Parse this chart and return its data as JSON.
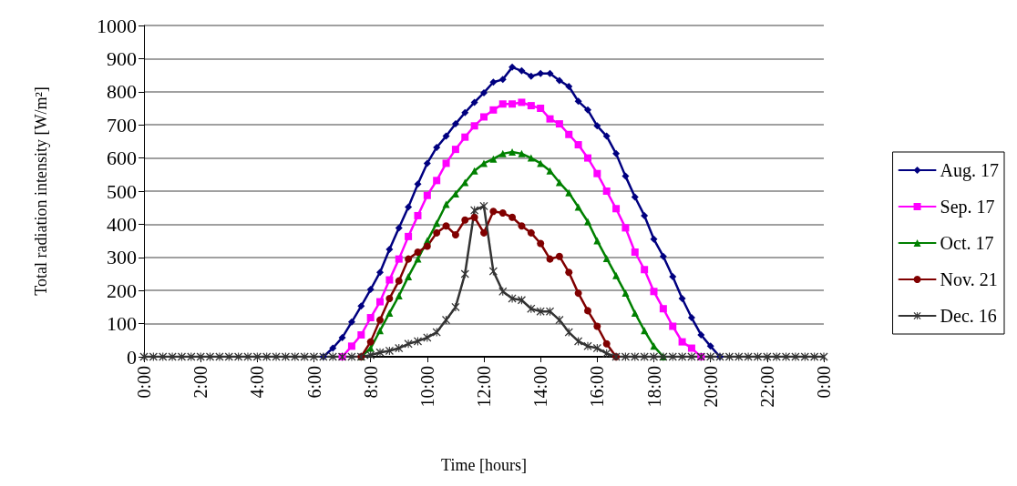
{
  "chart_data": {
    "type": "line",
    "xlabel": "Time [hours]",
    "ylabel": "Total radiation intensity [W/m²]",
    "x": [
      0,
      0.333,
      0.667,
      1,
      1.333,
      1.667,
      2,
      2.333,
      2.667,
      3,
      3.333,
      3.667,
      4,
      4.333,
      4.667,
      5,
      5.333,
      5.667,
      6,
      6.333,
      6.667,
      7,
      7.333,
      7.667,
      8,
      8.333,
      8.667,
      9,
      9.333,
      9.667,
      10,
      10.333,
      10.667,
      11,
      11.333,
      11.667,
      12,
      12.333,
      12.667,
      13,
      13.333,
      13.667,
      14,
      14.333,
      14.667,
      15,
      15.333,
      15.667,
      16,
      16.333,
      16.667,
      17,
      17.333,
      17.667,
      18,
      18.333,
      18.667,
      19,
      19.333,
      19.667,
      20,
      20.333,
      20.667,
      21,
      21.333,
      21.667,
      22,
      22.333,
      22.667,
      23,
      23.333,
      23.667,
      24
    ],
    "series": [
      {
        "name": "Aug. 17",
        "color": "#000080",
        "marker": "diamond",
        "values": [
          null,
          null,
          null,
          null,
          null,
          null,
          null,
          null,
          null,
          null,
          null,
          null,
          null,
          null,
          null,
          null,
          null,
          null,
          null,
          0,
          26,
          58,
          105,
          153,
          203,
          255,
          324,
          389,
          452,
          521,
          584,
          632,
          666,
          703,
          737,
          768,
          797,
          829,
          837,
          874,
          863,
          847,
          855,
          855,
          834,
          816,
          771,
          745,
          697,
          666,
          613,
          545,
          482,
          426,
          355,
          303,
          242,
          176,
          118,
          66,
          32,
          0,
          null,
          null,
          null,
          null,
          null,
          null,
          null,
          null,
          null,
          null,
          null
        ]
      },
      {
        "name": "Sep. 17",
        "color": "#ff00ff",
        "marker": "square",
        "values": [
          null,
          null,
          null,
          null,
          null,
          null,
          null,
          null,
          null,
          null,
          null,
          null,
          null,
          null,
          null,
          null,
          null,
          null,
          null,
          null,
          null,
          0,
          32,
          66,
          118,
          166,
          232,
          295,
          363,
          426,
          487,
          532,
          584,
          626,
          663,
          697,
          724,
          745,
          763,
          763,
          768,
          758,
          750,
          718,
          703,
          671,
          640,
          600,
          553,
          500,
          447,
          389,
          316,
          263,
          197,
          145,
          92,
          45,
          26,
          0,
          null,
          null,
          null,
          null,
          null,
          null,
          null,
          null,
          null,
          null,
          null,
          null,
          null
        ]
      },
      {
        "name": "Oct. 17",
        "color": "#008000",
        "marker": "triangle",
        "values": [
          null,
          null,
          null,
          null,
          null,
          null,
          null,
          null,
          null,
          null,
          null,
          null,
          null,
          null,
          null,
          null,
          null,
          null,
          null,
          null,
          null,
          null,
          null,
          0,
          26,
          79,
          132,
          184,
          242,
          295,
          350,
          403,
          460,
          492,
          526,
          561,
          584,
          597,
          613,
          618,
          613,
          600,
          584,
          561,
          526,
          495,
          452,
          408,
          350,
          297,
          245,
          192,
          132,
          79,
          32,
          0,
          null,
          null,
          null,
          null,
          null,
          null,
          null,
          null,
          null,
          null,
          null,
          null,
          null,
          null,
          null,
          null,
          null
        ]
      },
      {
        "name": "Nov. 21",
        "color": "#800000",
        "marker": "circle",
        "values": [
          null,
          null,
          null,
          null,
          null,
          null,
          null,
          null,
          null,
          null,
          null,
          null,
          null,
          null,
          null,
          null,
          null,
          null,
          null,
          null,
          null,
          null,
          null,
          0,
          45,
          111,
          176,
          229,
          295,
          316,
          334,
          374,
          395,
          368,
          413,
          421,
          374,
          439,
          434,
          421,
          395,
          374,
          342,
          295,
          303,
          255,
          192,
          139,
          92,
          39,
          0,
          null,
          null,
          null,
          null,
          null,
          null,
          null,
          null,
          null,
          null,
          null,
          null,
          null,
          null,
          null,
          null,
          null,
          null,
          null,
          null,
          null,
          null
        ]
      },
      {
        "name": "Dec. 16",
        "color": "#333333",
        "marker": "cross",
        "values": [
          0,
          0,
          0,
          0,
          0,
          0,
          0,
          0,
          0,
          0,
          0,
          0,
          0,
          0,
          0,
          0,
          0,
          0,
          0,
          0,
          0,
          0,
          0,
          0,
          5,
          13,
          18,
          26,
          39,
          47,
          58,
          74,
          111,
          150,
          250,
          442,
          455,
          258,
          197,
          176,
          171,
          145,
          137,
          137,
          111,
          74,
          47,
          32,
          26,
          10,
          0,
          0,
          0,
          0,
          0,
          0,
          0,
          0,
          0,
          0,
          0,
          0,
          0,
          0,
          0,
          0,
          0,
          0,
          0,
          0,
          0,
          0,
          0
        ]
      }
    ],
    "xlim": [
      0,
      24
    ],
    "xticks": [
      {
        "value": 0,
        "label": "0:00"
      },
      {
        "value": 2,
        "label": "2:00"
      },
      {
        "value": 4,
        "label": "4:00"
      },
      {
        "value": 6,
        "label": "6:00"
      },
      {
        "value": 8,
        "label": "8:00"
      },
      {
        "value": 10,
        "label": "10:00"
      },
      {
        "value": 12,
        "label": "12:00"
      },
      {
        "value": 14,
        "label": "14:00"
      },
      {
        "value": 16,
        "label": "16:00"
      },
      {
        "value": 18,
        "label": "18:00"
      },
      {
        "value": 20,
        "label": "20:00"
      },
      {
        "value": 22,
        "label": "22:00"
      },
      {
        "value": 24,
        "label": "0:00"
      }
    ],
    "ylim": [
      0,
      1000
    ],
    "yticks": [
      0,
      100,
      200,
      300,
      400,
      500,
      600,
      700,
      800,
      900,
      1000
    ],
    "grid": "y",
    "legend": "right",
    "line_style": "solid"
  }
}
